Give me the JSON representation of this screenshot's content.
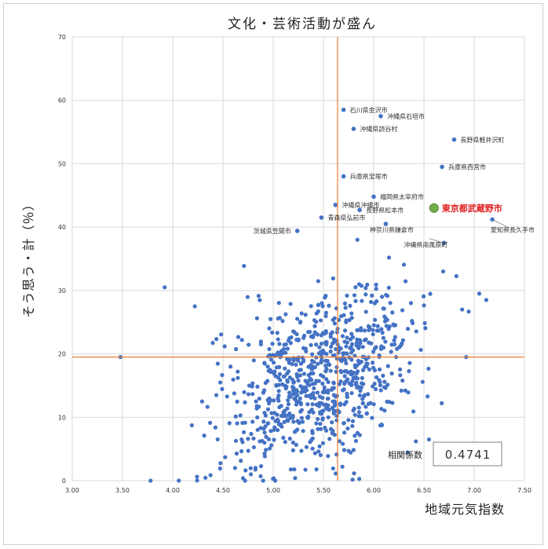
{
  "chart_data": {
    "type": "scatter",
    "title": "文化・芸術活動が盛ん",
    "xlabel": "地域元気指数",
    "ylabel": "そう思う・計（％）",
    "xlim": [
      3.0,
      7.5
    ],
    "ylim": [
      0,
      70
    ],
    "x_ticks": [
      "3.00",
      "3.50",
      "4.00",
      "4.50",
      "5.00",
      "5.50",
      "6.00",
      "6.50",
      "7.00",
      "7.50"
    ],
    "y_ticks": [
      "0",
      "10",
      "20",
      "30",
      "40",
      "50",
      "60",
      "70"
    ],
    "grid": true,
    "reference_lines": {
      "x": 5.64,
      "y": 19.5
    },
    "correlation": {
      "label": "相関係数",
      "value": "0.4741"
    },
    "highlight": {
      "label": "東京都武蔵野市",
      "x": 6.6,
      "y": 43.0
    },
    "labeled_points": [
      {
        "label": "石川県金沢市",
        "x": 5.7,
        "y": 58.5
      },
      {
        "label": "沖縄県石垣市",
        "x": 6.07,
        "y": 57.5
      },
      {
        "label": "沖縄県読谷村",
        "x": 5.8,
        "y": 55.5
      },
      {
        "label": "長野県軽井沢町",
        "x": 6.8,
        "y": 53.8
      },
      {
        "label": "兵庫県西宮市",
        "x": 6.68,
        "y": 49.5
      },
      {
        "label": "兵庫県宝塚市",
        "x": 5.7,
        "y": 48.0
      },
      {
        "label": "福岡県太宰府市",
        "x": 6.0,
        "y": 44.8
      },
      {
        "label": "沖縄県沖縄市",
        "x": 5.62,
        "y": 43.5
      },
      {
        "label": "長野県松本市",
        "x": 5.86,
        "y": 42.7
      },
      {
        "label": "青森県弘前市",
        "x": 5.48,
        "y": 41.5
      },
      {
        "label": "茨城県笠間市",
        "x": 5.24,
        "y": 39.4
      },
      {
        "label": "神奈川県鎌倉市",
        "x": 6.12,
        "y": 40.5
      },
      {
        "label": "愛知県長久手市",
        "x": 7.18,
        "y": 41.2
      },
      {
        "label": "沖縄県南風原町",
        "x": 6.7,
        "y": 37.5
      }
    ],
    "colors": {
      "points": "#4472c4",
      "highlight": "#70ad47",
      "ref_line": "#ed7d31",
      "grid": "#d9d9d9"
    }
  }
}
